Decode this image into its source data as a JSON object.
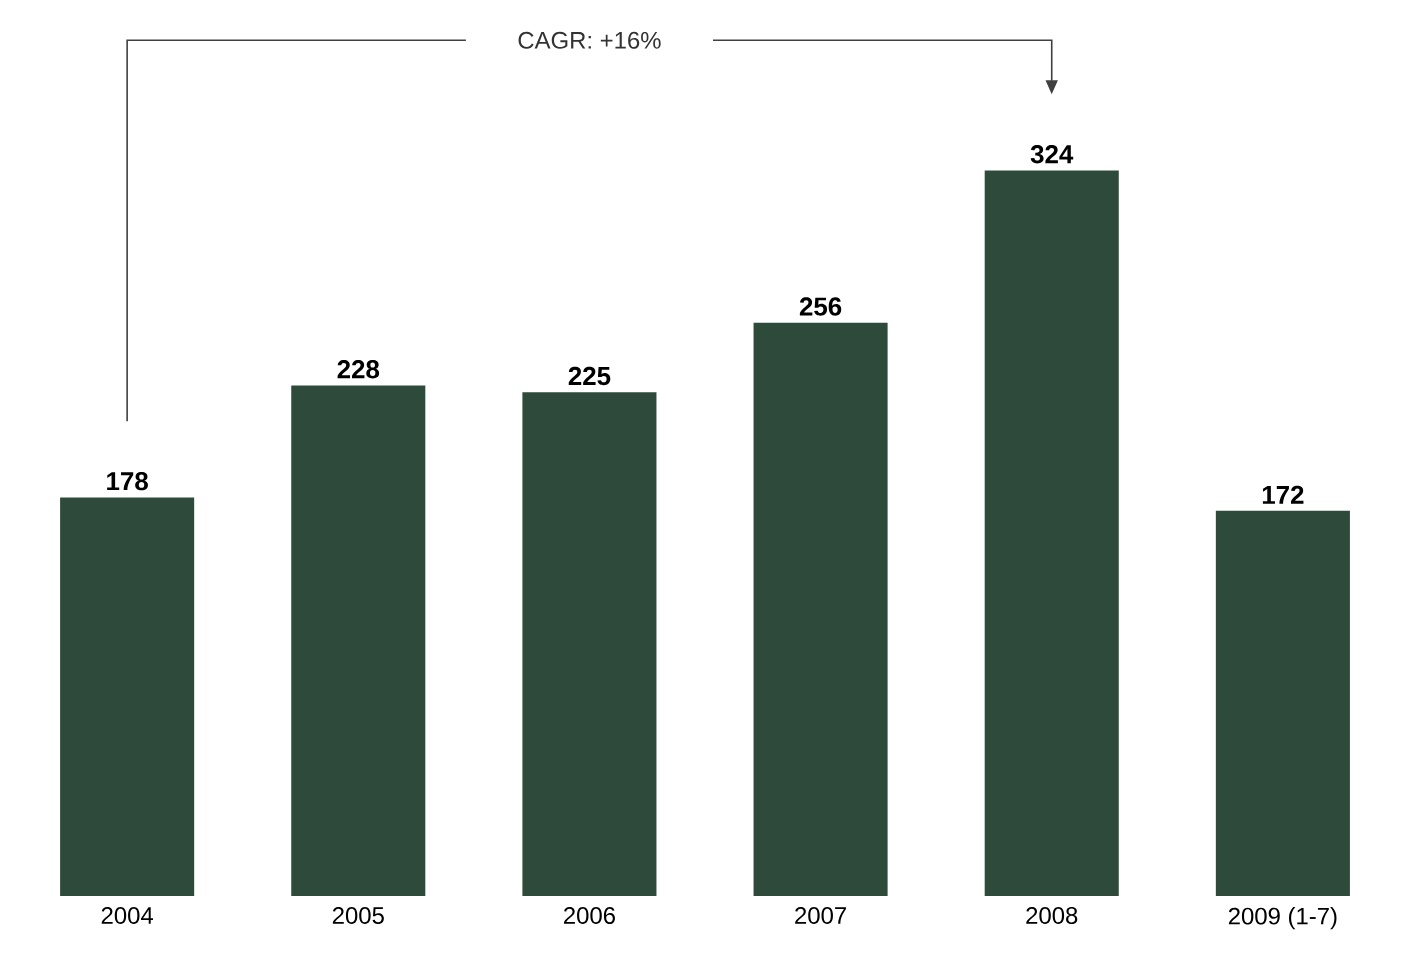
{
  "chart_data": {
    "type": "bar",
    "categories": [
      "2004",
      "2005",
      "2006",
      "2007",
      "2008",
      "2009 (1-7)"
    ],
    "values": [
      178,
      228,
      225,
      256,
      324,
      172
    ],
    "color": "#2e4a3b",
    "data_labels": true,
    "tick_labels": "x",
    "annotations": [
      "CAGR: +16%"
    ]
  }
}
